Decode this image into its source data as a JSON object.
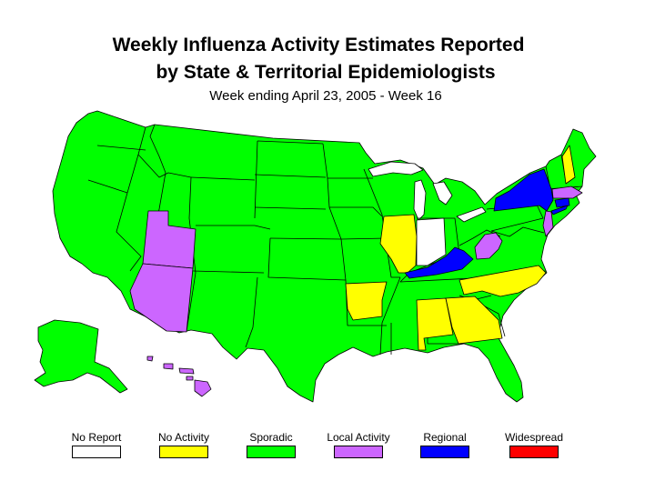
{
  "title": {
    "line1": "Weekly Influenza Activity Estimates Reported",
    "line2": "by State & Territorial Epidemiologists",
    "subtitle": "Week ending April 23, 2005 - Week 16"
  },
  "colors": {
    "no_report": "#ffffff",
    "no_activity": "#ffff00",
    "sporadic": "#00ff00",
    "local": "#cc66ff",
    "regional": "#0000ff",
    "widespread": "#ff0000"
  },
  "legend": [
    {
      "key": "no_report",
      "label": "No Report",
      "color": "#ffffff"
    },
    {
      "key": "no_activity",
      "label": "No Activity",
      "color": "#ffff00"
    },
    {
      "key": "sporadic",
      "label": "Sporadic",
      "color": "#00ff00"
    },
    {
      "key": "local",
      "label": "Local Activity",
      "color": "#cc66ff"
    },
    {
      "key": "regional",
      "label": "Regional",
      "color": "#0000ff"
    },
    {
      "key": "widespread",
      "label": "Widespread",
      "color": "#ff0000"
    }
  ],
  "state_activity": {
    "regional": [
      "New York",
      "Kentucky",
      "Connecticut"
    ],
    "local": [
      "Utah",
      "Arizona",
      "West Virginia",
      "New Jersey",
      "Massachusetts",
      "Hawaii"
    ],
    "no_activity": [
      "Illinois",
      "Arkansas",
      "Alabama",
      "Georgia",
      "North Carolina",
      "New Hampshire"
    ],
    "no_report": [
      "Indiana"
    ],
    "sporadic": "all other states"
  }
}
